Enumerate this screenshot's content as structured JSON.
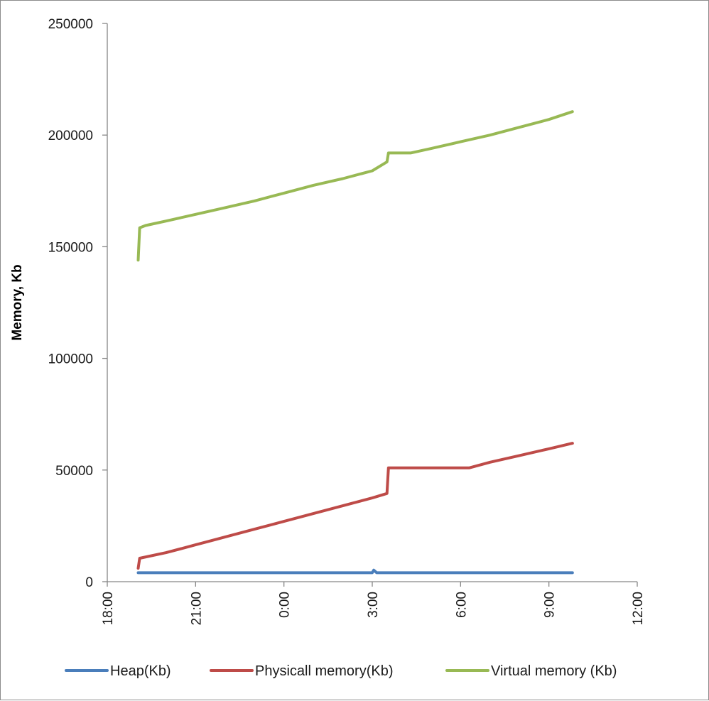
{
  "chart_data": {
    "type": "line",
    "title": "",
    "xlabel": "",
    "ylabel": "Memory, Kb",
    "ylim": [
      0,
      250000
    ],
    "xlim_hours": [
      18,
      36
    ],
    "grid": false,
    "legend_position": "bottom",
    "x_tick_labels": [
      "18:00",
      "21:00",
      "0:00",
      "3:00",
      "6:00",
      "9:00",
      "12:00"
    ],
    "y_tick_labels": [
      "0",
      "50000",
      "100000",
      "150000",
      "200000",
      "250000"
    ],
    "y_ticks": [
      0,
      50000,
      100000,
      150000,
      200000,
      250000
    ],
    "series": [
      {
        "name": "Heap(Kb)",
        "color": "#4a7ebb",
        "x_hours": [
          19.05,
          19.1,
          26.0,
          27.0,
          27.05,
          27.15,
          30.0,
          33.8
        ],
        "values": [
          4000,
          4000,
          4000,
          4000,
          5200,
          4000,
          4000,
          4000
        ]
      },
      {
        "name": "Physicall memory(Kb)",
        "color": "#be4b48",
        "x_hours": [
          19.05,
          19.1,
          20.0,
          21.0,
          22.0,
          23.0,
          24.0,
          25.0,
          26.0,
          27.0,
          27.5,
          27.55,
          28.5,
          29.5,
          30.3,
          31.0,
          32.0,
          33.0,
          33.8
        ],
        "values": [
          6000,
          10500,
          13000,
          16500,
          20000,
          23500,
          27000,
          30500,
          34000,
          37500,
          39500,
          51000,
          51000,
          51000,
          51000,
          53500,
          56500,
          59500,
          62000
        ]
      },
      {
        "name": "Virtual memory (Kb)",
        "color": "#98b954",
        "x_hours": [
          19.05,
          19.1,
          19.3,
          20.0,
          21.0,
          22.0,
          23.0,
          24.0,
          25.0,
          26.0,
          27.0,
          27.5,
          27.55,
          28.3,
          29.0,
          30.0,
          31.0,
          32.0,
          33.0,
          33.8
        ],
        "values": [
          144000,
          158500,
          159500,
          161500,
          164500,
          167500,
          170500,
          174000,
          177500,
          180500,
          184000,
          188000,
          192000,
          192000,
          194000,
          197000,
          200000,
          203500,
          207000,
          210500
        ]
      }
    ]
  }
}
